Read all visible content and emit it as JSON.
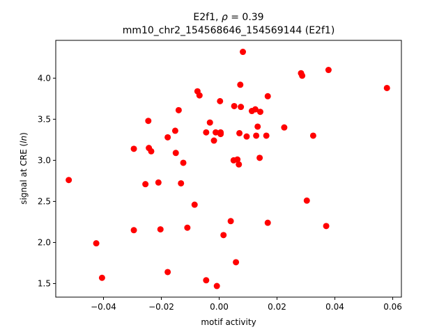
{
  "chart_data": {
    "type": "scatter",
    "title_line1_prefix": "E2f1, ",
    "title_line1_rho": "ρ",
    "title_line1_suffix": " = 0.39",
    "title_line2": "mm10_chr2_154568646_154569144 (E2f1)",
    "xlabel": "motif activity",
    "ylabel_prefix": "signal at CRE (",
    "ylabel_italic": "ln",
    "ylabel_suffix": ")",
    "xlim": [
      -0.0565,
      0.063
    ],
    "ylim": [
      1.335,
      4.46
    ],
    "xticks": [
      -0.04,
      -0.02,
      0.0,
      0.02,
      0.04,
      0.06
    ],
    "xtick_labels": [
      "−0.04",
      "−0.02",
      "0.00",
      "0.02",
      "0.04",
      "0.06"
    ],
    "yticks": [
      1.5,
      2.0,
      2.5,
      3.0,
      3.5,
      4.0
    ],
    "ytick_labels": [
      "1.5",
      "2.0",
      "2.5",
      "3.0",
      "3.5",
      "4.0"
    ],
    "marker_color": "#ff0000",
    "grid": false,
    "points": [
      {
        "x": -0.052,
        "y": 2.76
      },
      {
        "x": -0.0425,
        "y": 1.99
      },
      {
        "x": -0.0405,
        "y": 1.57
      },
      {
        "x": -0.0295,
        "y": 3.14
      },
      {
        "x": -0.0295,
        "y": 2.15
      },
      {
        "x": -0.0255,
        "y": 2.71
      },
      {
        "x": -0.0245,
        "y": 3.48
      },
      {
        "x": -0.0243,
        "y": 3.15
      },
      {
        "x": -0.0235,
        "y": 3.11
      },
      {
        "x": -0.021,
        "y": 2.73
      },
      {
        "x": -0.0203,
        "y": 2.16
      },
      {
        "x": -0.0178,
        "y": 3.28
      },
      {
        "x": -0.0178,
        "y": 1.64
      },
      {
        "x": -0.0152,
        "y": 3.36
      },
      {
        "x": -0.015,
        "y": 3.09
      },
      {
        "x": -0.014,
        "y": 3.61
      },
      {
        "x": -0.0132,
        "y": 2.72
      },
      {
        "x": -0.0124,
        "y": 2.97
      },
      {
        "x": -0.011,
        "y": 2.18
      },
      {
        "x": -0.0085,
        "y": 2.46
      },
      {
        "x": -0.0075,
        "y": 3.84
      },
      {
        "x": -0.0068,
        "y": 3.79
      },
      {
        "x": -0.0045,
        "y": 3.34
      },
      {
        "x": -0.0045,
        "y": 1.54
      },
      {
        "x": -0.0032,
        "y": 3.46
      },
      {
        "x": -0.0018,
        "y": 3.24
      },
      {
        "x": -0.0012,
        "y": 3.34
      },
      {
        "x": -0.0008,
        "y": 1.47
      },
      {
        "x": 0.0003,
        "y": 3.72
      },
      {
        "x": 0.0005,
        "y": 3.34
      },
      {
        "x": 0.0005,
        "y": 3.32
      },
      {
        "x": 0.0015,
        "y": 2.09
      },
      {
        "x": 0.004,
        "y": 2.26
      },
      {
        "x": 0.005,
        "y": 3.0
      },
      {
        "x": 0.0052,
        "y": 3.66
      },
      {
        "x": 0.0058,
        "y": 1.76
      },
      {
        "x": 0.0063,
        "y": 3.01
      },
      {
        "x": 0.0068,
        "y": 2.95
      },
      {
        "x": 0.007,
        "y": 3.33
      },
      {
        "x": 0.0073,
        "y": 3.92
      },
      {
        "x": 0.0075,
        "y": 3.65
      },
      {
        "x": 0.0082,
        "y": 4.32
      },
      {
        "x": 0.0095,
        "y": 3.29
      },
      {
        "x": 0.0113,
        "y": 3.6
      },
      {
        "x": 0.0125,
        "y": 3.62
      },
      {
        "x": 0.0128,
        "y": 3.3
      },
      {
        "x": 0.0133,
        "y": 3.41
      },
      {
        "x": 0.014,
        "y": 3.03
      },
      {
        "x": 0.0142,
        "y": 3.59
      },
      {
        "x": 0.0163,
        "y": 3.3
      },
      {
        "x": 0.0168,
        "y": 3.78
      },
      {
        "x": 0.0168,
        "y": 2.24
      },
      {
        "x": 0.0225,
        "y": 3.4
      },
      {
        "x": 0.0283,
        "y": 4.06
      },
      {
        "x": 0.0287,
        "y": 4.03
      },
      {
        "x": 0.0303,
        "y": 2.51
      },
      {
        "x": 0.0325,
        "y": 3.3
      },
      {
        "x": 0.037,
        "y": 2.2
      },
      {
        "x": 0.0378,
        "y": 4.1
      },
      {
        "x": 0.058,
        "y": 3.88
      }
    ]
  }
}
